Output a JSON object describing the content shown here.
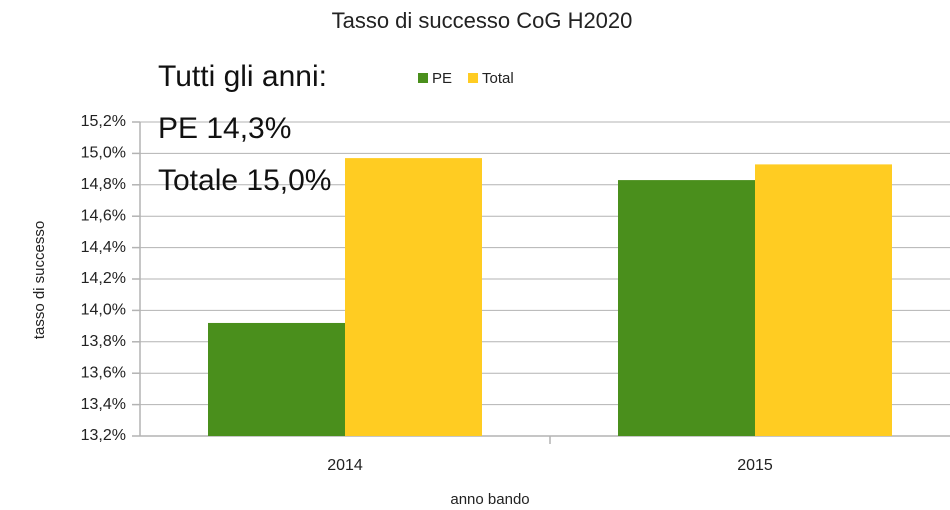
{
  "chart_data": {
    "type": "bar",
    "title": "Tasso di successo CoG H2020",
    "x_label": "anno bando",
    "y_label": "tasso di successo",
    "annotations": [
      "Tutti gli anni:",
      "PE 14,3%",
      "Totale 15,0%"
    ],
    "categories": [
      "2014",
      "2015"
    ],
    "series": [
      {
        "name": "PE",
        "color": "#4a8f1c",
        "values": [
          13.92,
          14.83
        ]
      },
      {
        "name": "Total",
        "color": "#ffcc22",
        "values": [
          14.97,
          14.93
        ]
      }
    ],
    "ylim": [
      13.2,
      15.2
    ],
    "yticks": [
      {
        "value": 13.2,
        "label": "13,2%"
      },
      {
        "value": 13.4,
        "label": "13,4%"
      },
      {
        "value": 13.6,
        "label": "13,6%"
      },
      {
        "value": 13.8,
        "label": "13,8%"
      },
      {
        "value": 14.0,
        "label": "14,0%"
      },
      {
        "value": 14.2,
        "label": "14,2%"
      },
      {
        "value": 14.4,
        "label": "14,4%"
      },
      {
        "value": 14.6,
        "label": "14,6%"
      },
      {
        "value": 14.8,
        "label": "14,8%"
      },
      {
        "value": 15.0,
        "label": "15,0%"
      },
      {
        "value": 15.2,
        "label": "15,2%"
      }
    ],
    "grid": true,
    "legend": "top"
  }
}
